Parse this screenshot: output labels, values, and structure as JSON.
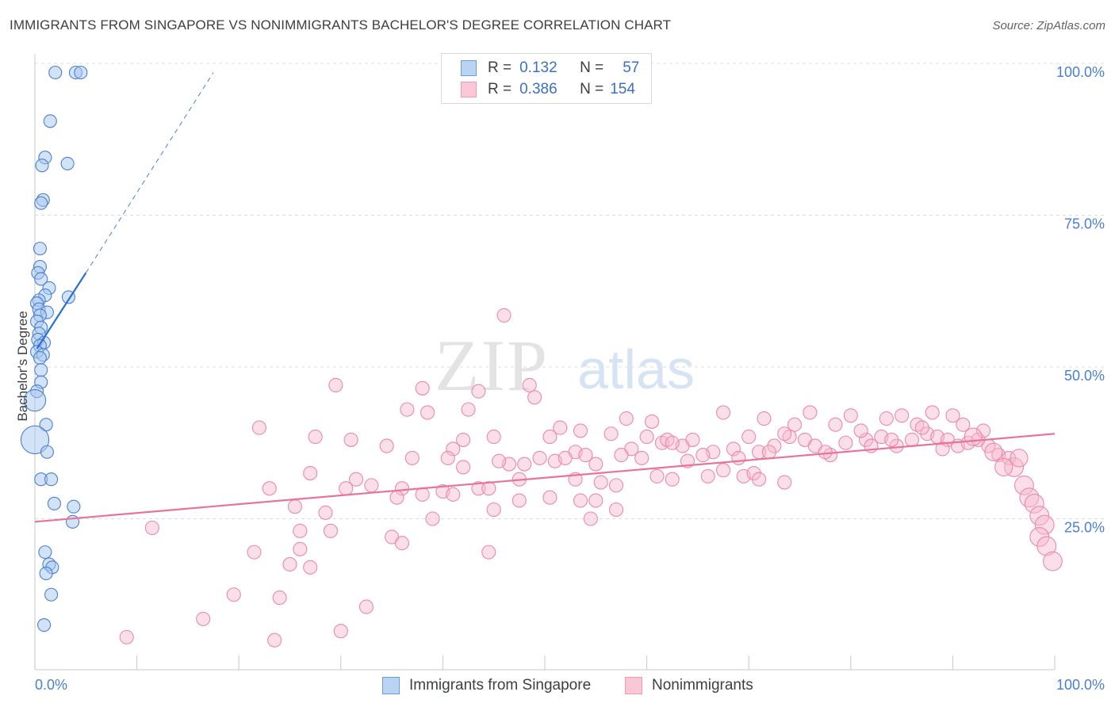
{
  "header": {
    "title": "IMMIGRANTS FROM SINGAPORE VS NONIMMIGRANTS BACHELOR'S DEGREE CORRELATION CHART",
    "source": "Source: ZipAtlas.com"
  },
  "watermark": {
    "zip": "ZIP",
    "atlas": "atlas"
  },
  "colors": {
    "blue_fill": "#a8c8f0",
    "blue_stroke": "#4a7fd0",
    "blue_line": "#2a6fd0",
    "pink_fill": "#f7b8cb",
    "pink_stroke": "#e98aa8",
    "pink_line": "#e8739a",
    "grid": "#dcdcdc",
    "axis_label": "#4a7fd0"
  },
  "legend": {
    "rows": [
      {
        "r_label": "R =",
        "r_value": "0.132",
        "n_label": "N =",
        "n_value": "57"
      },
      {
        "r_label": "R =",
        "r_value": "0.386",
        "n_label": "N =",
        "n_value": "154"
      }
    ]
  },
  "bottom_legend": {
    "series1": "Immigrants from Singapore",
    "series2": "Nonimmigrants"
  },
  "chart_data": {
    "type": "scatter",
    "title": "IMMIGRANTS FROM SINGAPORE VS NONIMMIGRANTS BACHELOR'S DEGREE CORRELATION CHART",
    "xlabel": "",
    "ylabel": "Bachelor's Degree",
    "xlim": [
      0,
      100
    ],
    "ylim": [
      0,
      100
    ],
    "x_tick_labels": [
      "0.0%",
      "100.0%"
    ],
    "y_tick_labels": [
      "25.0%",
      "50.0%",
      "75.0%",
      "100.0%"
    ],
    "grid": true,
    "series": [
      {
        "name": "Immigrants from Singapore",
        "r": 0.132,
        "n": 57,
        "trend": {
          "x": [
            0.2,
            5.0
          ],
          "y": [
            53.0,
            65.5
          ],
          "dashed_to": [
            17.5,
            98.5
          ]
        },
        "points": [
          [
            2.0,
            98.5,
            1
          ],
          [
            4.0,
            98.5,
            1
          ],
          [
            4.5,
            98.5,
            1
          ],
          [
            1.5,
            90.5,
            1
          ],
          [
            1.0,
            84.5,
            1
          ],
          [
            3.2,
            83.5,
            1
          ],
          [
            0.7,
            83.2,
            1
          ],
          [
            0.8,
            77.5,
            1
          ],
          [
            0.6,
            77.0,
            1
          ],
          [
            0.5,
            69.5,
            1
          ],
          [
            0.5,
            66.5,
            1
          ],
          [
            0.3,
            65.5,
            1
          ],
          [
            0.6,
            64.5,
            1
          ],
          [
            1.4,
            63.0,
            1
          ],
          [
            3.3,
            61.5,
            1
          ],
          [
            1.0,
            61.8,
            1
          ],
          [
            0.4,
            61.0,
            1
          ],
          [
            0.2,
            60.5,
            1
          ],
          [
            0.4,
            59.5,
            1
          ],
          [
            1.2,
            59.0,
            1
          ],
          [
            0.5,
            58.5,
            1
          ],
          [
            0.2,
            57.5,
            1
          ],
          [
            0.6,
            56.5,
            1
          ],
          [
            0.4,
            55.5,
            1
          ],
          [
            0.3,
            54.5,
            1
          ],
          [
            0.9,
            54.0,
            1
          ],
          [
            0.5,
            53.5,
            1
          ],
          [
            0.2,
            52.5,
            1
          ],
          [
            0.8,
            52.0,
            1
          ],
          [
            0.5,
            51.5,
            1
          ],
          [
            0.6,
            49.5,
            1
          ],
          [
            0.6,
            47.5,
            1
          ],
          [
            0.2,
            46.0,
            1
          ],
          [
            0.0,
            44.5,
            1.7
          ],
          [
            1.1,
            40.5,
            1
          ],
          [
            0.0,
            38.0,
            2.2
          ],
          [
            1.2,
            36.0,
            1
          ],
          [
            0.6,
            31.5,
            1
          ],
          [
            1.6,
            31.5,
            1
          ],
          [
            1.9,
            27.5,
            1
          ],
          [
            3.8,
            27.0,
            1
          ],
          [
            3.7,
            24.5,
            1
          ],
          [
            1.0,
            19.5,
            1
          ],
          [
            1.4,
            17.5,
            1
          ],
          [
            1.7,
            17.0,
            1
          ],
          [
            1.1,
            16.0,
            1
          ],
          [
            1.6,
            12.5,
            1
          ],
          [
            0.9,
            7.5,
            1
          ]
        ]
      },
      {
        "name": "Nonimmigrants",
        "r": 0.386,
        "n": 154,
        "trend": {
          "x": [
            0,
            100
          ],
          "y": [
            24.5,
            39.0
          ]
        },
        "points": [
          [
            46.0,
            58.5,
            1
          ],
          [
            29.5,
            47.0,
            1
          ],
          [
            38.0,
            46.5,
            1
          ],
          [
            43.5,
            46.0,
            1
          ],
          [
            48.5,
            47.0,
            1
          ],
          [
            49.0,
            45.0,
            1
          ],
          [
            42.5,
            43.0,
            1
          ],
          [
            36.5,
            43.0,
            1
          ],
          [
            38.5,
            42.5,
            1
          ],
          [
            58.0,
            41.5,
            1
          ],
          [
            22.0,
            40.0,
            1
          ],
          [
            51.5,
            40.0,
            1
          ],
          [
            60.0,
            38.5,
            1
          ],
          [
            56.5,
            39.0,
            1
          ],
          [
            27.5,
            38.5,
            1
          ],
          [
            31.0,
            38.0,
            1
          ],
          [
            42.0,
            38.0,
            1
          ],
          [
            45.0,
            38.5,
            1
          ],
          [
            34.5,
            37.0,
            1
          ],
          [
            41.0,
            36.5,
            1
          ],
          [
            50.5,
            38.5,
            1
          ],
          [
            53.0,
            36.0,
            1
          ],
          [
            58.5,
            36.5,
            1
          ],
          [
            61.5,
            37.5,
            1
          ],
          [
            62.0,
            38.0,
            1
          ],
          [
            63.5,
            37.0,
            1
          ],
          [
            64.5,
            38.0,
            1
          ],
          [
            66.5,
            36.0,
            1
          ],
          [
            68.5,
            36.5,
            1
          ],
          [
            71.0,
            36.0,
            1
          ],
          [
            70.0,
            38.5,
            1
          ],
          [
            72.5,
            37.0,
            1
          ],
          [
            74.0,
            38.5,
            1
          ],
          [
            75.5,
            38.0,
            1
          ],
          [
            76.5,
            37.0,
            1
          ],
          [
            78.0,
            35.5,
            1
          ],
          [
            79.5,
            37.5,
            1
          ],
          [
            81.5,
            38.0,
            1
          ],
          [
            83.0,
            38.5,
            1
          ],
          [
            84.5,
            37.0,
            1
          ],
          [
            86.0,
            38.0,
            1
          ],
          [
            87.5,
            39.0,
            1
          ],
          [
            88.5,
            38.5,
            1
          ],
          [
            89.5,
            38.0,
            1
          ],
          [
            90.5,
            37.0,
            1
          ],
          [
            91.5,
            37.5,
            1
          ],
          [
            92.5,
            38.0,
            1
          ],
          [
            93.5,
            37.0,
            1
          ],
          [
            94.5,
            35.5,
            1
          ],
          [
            95.5,
            35.0,
            1
          ],
          [
            76.0,
            42.5,
            1
          ],
          [
            80.0,
            42.0,
            1
          ],
          [
            83.5,
            41.5,
            1
          ],
          [
            85.0,
            42.0,
            1
          ],
          [
            88.0,
            42.5,
            1
          ],
          [
            90.0,
            42.0,
            1
          ],
          [
            91.0,
            40.5,
            1
          ],
          [
            86.5,
            40.5,
            1
          ],
          [
            93.0,
            39.5,
            1
          ],
          [
            87.0,
            40.0,
            1
          ],
          [
            81.0,
            39.5,
            1
          ],
          [
            78.5,
            40.5,
            1
          ],
          [
            73.5,
            39.0,
            1
          ],
          [
            84.0,
            38.0,
            1
          ],
          [
            74.5,
            40.5,
            1
          ],
          [
            71.5,
            41.5,
            1
          ],
          [
            67.5,
            42.5,
            1
          ],
          [
            60.5,
            41.0,
            1
          ],
          [
            53.5,
            39.5,
            1
          ],
          [
            62.5,
            37.5,
            1
          ],
          [
            65.5,
            35.5,
            1
          ],
          [
            51.0,
            34.5,
            1
          ],
          [
            46.5,
            34.0,
            1
          ],
          [
            45.5,
            34.5,
            1
          ],
          [
            42.0,
            33.5,
            1
          ],
          [
            40.5,
            35.0,
            1
          ],
          [
            55.0,
            34.0,
            1
          ],
          [
            49.5,
            35.0,
            1
          ],
          [
            52.0,
            35.0,
            1
          ],
          [
            54.0,
            35.5,
            1
          ],
          [
            57.5,
            35.5,
            1
          ],
          [
            59.5,
            35.0,
            1
          ],
          [
            64.0,
            34.5,
            1
          ],
          [
            69.0,
            35.0,
            1
          ],
          [
            72.0,
            36.0,
            1
          ],
          [
            77.5,
            36.0,
            1
          ],
          [
            82.0,
            37.0,
            1
          ],
          [
            89.0,
            36.5,
            1
          ],
          [
            37.0,
            35.0,
            1
          ],
          [
            48.0,
            34.0,
            1
          ],
          [
            27.0,
            32.5,
            1
          ],
          [
            31.5,
            31.5,
            1
          ],
          [
            33.0,
            30.5,
            1
          ],
          [
            36.0,
            30.0,
            1
          ],
          [
            40.0,
            29.5,
            1
          ],
          [
            43.5,
            30.0,
            1
          ],
          [
            47.5,
            31.5,
            1
          ],
          [
            53.0,
            31.5,
            1
          ],
          [
            55.5,
            31.0,
            1
          ],
          [
            61.0,
            32.0,
            1
          ],
          [
            62.5,
            31.5,
            1
          ],
          [
            66.0,
            32.0,
            1
          ],
          [
            67.5,
            33.0,
            1
          ],
          [
            69.5,
            32.0,
            1
          ],
          [
            70.5,
            32.5,
            1
          ],
          [
            71.0,
            31.5,
            1
          ],
          [
            73.5,
            31.0,
            1
          ],
          [
            57.0,
            30.5,
            1
          ],
          [
            55.0,
            28.0,
            1
          ],
          [
            53.5,
            28.0,
            1
          ],
          [
            50.5,
            28.5,
            1
          ],
          [
            47.5,
            28.0,
            1
          ],
          [
            44.5,
            30.0,
            1
          ],
          [
            41.0,
            29.0,
            1
          ],
          [
            38.0,
            29.0,
            1
          ],
          [
            35.5,
            28.5,
            1
          ],
          [
            30.5,
            30.0,
            1
          ],
          [
            23.0,
            30.0,
            1
          ],
          [
            25.5,
            27.0,
            1
          ],
          [
            28.5,
            26.0,
            1
          ],
          [
            39.0,
            25.0,
            1
          ],
          [
            45.0,
            26.5,
            1
          ],
          [
            54.5,
            25.0,
            1
          ],
          [
            57.0,
            26.5,
            1
          ],
          [
            26.0,
            23.0,
            1
          ],
          [
            29.0,
            23.0,
            1
          ],
          [
            35.0,
            22.0,
            1
          ],
          [
            36.0,
            21.0,
            1
          ],
          [
            11.5,
            23.5,
            1
          ],
          [
            21.5,
            19.5,
            1
          ],
          [
            26.0,
            20.0,
            1
          ],
          [
            44.5,
            19.5,
            1
          ],
          [
            25.0,
            17.5,
            1
          ],
          [
            27.0,
            17.0,
            1
          ],
          [
            19.5,
            12.5,
            1
          ],
          [
            24.0,
            12.0,
            1
          ],
          [
            32.5,
            10.5,
            1
          ],
          [
            16.5,
            8.5,
            1
          ],
          [
            30.0,
            6.5,
            1
          ],
          [
            9.0,
            5.5,
            1
          ],
          [
            23.5,
            5.0,
            1
          ],
          [
            96.0,
            33.5,
            1.4
          ],
          [
            97.0,
            30.5,
            1.4
          ],
          [
            97.5,
            28.5,
            1.4
          ],
          [
            98.0,
            27.5,
            1.4
          ],
          [
            98.5,
            25.5,
            1.4
          ],
          [
            99.0,
            24.0,
            1.4
          ],
          [
            98.5,
            22.0,
            1.4
          ],
          [
            99.2,
            20.5,
            1.4
          ],
          [
            99.8,
            18.0,
            1.4
          ],
          [
            95.0,
            33.5,
            1.3
          ],
          [
            96.5,
            35.0,
            1.3
          ],
          [
            94.0,
            36.0,
            1.3
          ],
          [
            92.0,
            38.5,
            1.3
          ]
        ]
      }
    ]
  }
}
